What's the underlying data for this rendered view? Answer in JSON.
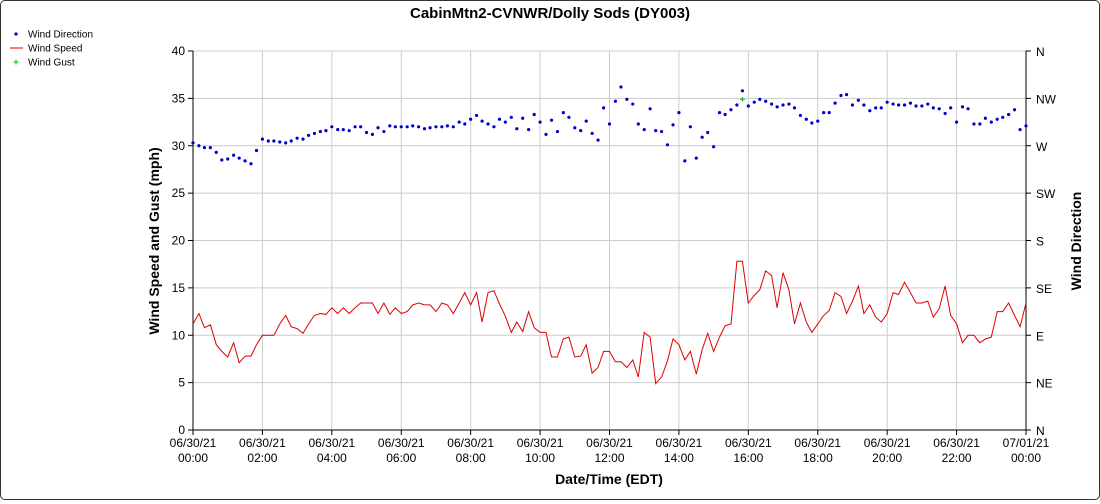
{
  "chart_data": {
    "type": "line",
    "title": "CabinMtn2-CVNWR/Dolly Sods (DY003)",
    "xlabel": "Date/Time (EDT)",
    "ylabel": "Wind Speed and Gust (mph)",
    "y2label": "Wind Direction",
    "ylim": [
      0,
      40
    ],
    "y_ticks": [
      "0",
      "5",
      "10",
      "15",
      "20",
      "25",
      "30",
      "35",
      "40"
    ],
    "y2_ticks": [
      "N",
      "NE",
      "E",
      "SE",
      "S",
      "SW",
      "W",
      "NW",
      "N"
    ],
    "x_range_hours": [
      0,
      24
    ],
    "x_ticks": [
      {
        "hour": 0,
        "date": "06/30/21",
        "time": "00:00"
      },
      {
        "hour": 2,
        "date": "06/30/21",
        "time": "02:00"
      },
      {
        "hour": 4,
        "date": "06/30/21",
        "time": "04:00"
      },
      {
        "hour": 6,
        "date": "06/30/21",
        "time": "06:00"
      },
      {
        "hour": 8,
        "date": "06/30/21",
        "time": "08:00"
      },
      {
        "hour": 10,
        "date": "06/30/21",
        "time": "10:00"
      },
      {
        "hour": 12,
        "date": "06/30/21",
        "time": "12:00"
      },
      {
        "hour": 14,
        "date": "06/30/21",
        "time": "14:00"
      },
      {
        "hour": 16,
        "date": "06/30/21",
        "time": "16:00"
      },
      {
        "hour": 18,
        "date": "06/30/21",
        "time": "18:00"
      },
      {
        "hour": 20,
        "date": "06/30/21",
        "time": "20:00"
      },
      {
        "hour": 22,
        "date": "06/30/21",
        "time": "22:00"
      },
      {
        "hour": 24,
        "date": "07/01/21",
        "time": "00:00"
      }
    ],
    "grid": true,
    "legend": [
      {
        "name": "Wind Direction",
        "color": "#0000cc",
        "marker": "dot"
      },
      {
        "name": "Wind Speed",
        "color": "#dd0000",
        "marker": "line"
      },
      {
        "name": "Wind Gust",
        "color": "#00bb00",
        "marker": "plus"
      }
    ],
    "series": [
      {
        "name": "Wind Speed",
        "color": "#dd0000",
        "values": [
          [
            0.0,
            11.2
          ],
          [
            0.17,
            12.3
          ],
          [
            0.33,
            10.8
          ],
          [
            0.5,
            11.1
          ],
          [
            0.67,
            9.0
          ],
          [
            0.83,
            8.3
          ],
          [
            1.0,
            7.7
          ],
          [
            1.17,
            9.2
          ],
          [
            1.33,
            7.1
          ],
          [
            1.5,
            7.8
          ],
          [
            1.67,
            7.8
          ],
          [
            1.83,
            9.0
          ],
          [
            2.0,
            10.0
          ],
          [
            2.17,
            10.0
          ],
          [
            2.33,
            10.0
          ],
          [
            2.5,
            11.2
          ],
          [
            2.67,
            12.1
          ],
          [
            2.83,
            10.9
          ],
          [
            3.0,
            10.7
          ],
          [
            3.17,
            10.2
          ],
          [
            3.33,
            11.2
          ],
          [
            3.5,
            12.1
          ],
          [
            3.67,
            12.3
          ],
          [
            3.83,
            12.2
          ],
          [
            4.0,
            12.9
          ],
          [
            4.17,
            12.3
          ],
          [
            4.33,
            12.9
          ],
          [
            4.5,
            12.3
          ],
          [
            4.67,
            12.9
          ],
          [
            4.83,
            13.4
          ],
          [
            5.0,
            13.4
          ],
          [
            5.17,
            13.4
          ],
          [
            5.33,
            12.3
          ],
          [
            5.5,
            13.4
          ],
          [
            5.67,
            12.2
          ],
          [
            5.83,
            12.9
          ],
          [
            6.0,
            12.3
          ],
          [
            6.17,
            12.5
          ],
          [
            6.33,
            13.2
          ],
          [
            6.5,
            13.4
          ],
          [
            6.67,
            13.2
          ],
          [
            6.83,
            13.2
          ],
          [
            7.0,
            12.5
          ],
          [
            7.17,
            13.4
          ],
          [
            7.33,
            13.2
          ],
          [
            7.5,
            12.3
          ],
          [
            7.67,
            13.4
          ],
          [
            7.83,
            14.5
          ],
          [
            8.0,
            13.2
          ],
          [
            8.17,
            14.5
          ],
          [
            8.33,
            11.4
          ],
          [
            8.5,
            14.5
          ],
          [
            8.67,
            14.7
          ],
          [
            8.83,
            13.3
          ],
          [
            9.0,
            12.0
          ],
          [
            9.17,
            10.3
          ],
          [
            9.33,
            11.4
          ],
          [
            9.5,
            10.4
          ],
          [
            9.67,
            12.5
          ],
          [
            9.83,
            10.8
          ],
          [
            10.0,
            10.3
          ],
          [
            10.17,
            10.3
          ],
          [
            10.33,
            7.7
          ],
          [
            10.5,
            7.7
          ],
          [
            10.67,
            9.6
          ],
          [
            10.83,
            9.8
          ],
          [
            11.0,
            7.7
          ],
          [
            11.17,
            7.8
          ],
          [
            11.33,
            9.0
          ],
          [
            11.5,
            6.0
          ],
          [
            11.67,
            6.6
          ],
          [
            11.83,
            8.3
          ],
          [
            12.0,
            8.3
          ],
          [
            12.17,
            7.2
          ],
          [
            12.33,
            7.2
          ],
          [
            12.5,
            6.6
          ],
          [
            12.67,
            7.4
          ],
          [
            12.83,
            5.6
          ],
          [
            13.0,
            10.3
          ],
          [
            13.17,
            9.8
          ],
          [
            13.33,
            4.9
          ],
          [
            13.5,
            5.6
          ],
          [
            13.67,
            7.3
          ],
          [
            13.83,
            9.6
          ],
          [
            14.0,
            9.0
          ],
          [
            14.17,
            7.4
          ],
          [
            14.33,
            8.3
          ],
          [
            14.5,
            5.9
          ],
          [
            14.67,
            8.5
          ],
          [
            14.83,
            10.2
          ],
          [
            15.0,
            8.3
          ],
          [
            15.17,
            9.8
          ],
          [
            15.33,
            11.0
          ],
          [
            15.5,
            11.2
          ],
          [
            15.67,
            17.8
          ],
          [
            15.83,
            17.8
          ],
          [
            16.0,
            13.4
          ],
          [
            16.17,
            14.2
          ],
          [
            16.33,
            14.8
          ],
          [
            16.5,
            16.8
          ],
          [
            16.67,
            16.3
          ],
          [
            16.83,
            12.9
          ],
          [
            17.0,
            16.6
          ],
          [
            17.17,
            14.8
          ],
          [
            17.33,
            11.2
          ],
          [
            17.5,
            13.4
          ],
          [
            17.67,
            11.4
          ],
          [
            17.83,
            10.3
          ],
          [
            18.0,
            11.2
          ],
          [
            18.17,
            12.1
          ],
          [
            18.33,
            12.6
          ],
          [
            18.5,
            14.5
          ],
          [
            18.67,
            14.1
          ],
          [
            18.83,
            12.3
          ],
          [
            19.0,
            13.6
          ],
          [
            19.17,
            15.2
          ],
          [
            19.33,
            12.3
          ],
          [
            19.5,
            13.2
          ],
          [
            19.67,
            11.9
          ],
          [
            19.83,
            11.4
          ],
          [
            20.0,
            12.3
          ],
          [
            20.17,
            14.5
          ],
          [
            20.33,
            14.3
          ],
          [
            20.5,
            15.6
          ],
          [
            20.67,
            14.5
          ],
          [
            20.83,
            13.4
          ],
          [
            21.0,
            13.4
          ],
          [
            21.17,
            13.6
          ],
          [
            21.33,
            11.9
          ],
          [
            21.5,
            12.8
          ],
          [
            21.67,
            15.2
          ],
          [
            21.83,
            12.1
          ],
          [
            22.0,
            11.2
          ],
          [
            22.17,
            9.2
          ],
          [
            22.33,
            10.0
          ],
          [
            22.5,
            10.0
          ],
          [
            22.67,
            9.2
          ],
          [
            22.83,
            9.6
          ],
          [
            23.0,
            9.8
          ],
          [
            23.17,
            12.5
          ],
          [
            23.33,
            12.5
          ],
          [
            23.5,
            13.4
          ],
          [
            23.67,
            12.1
          ],
          [
            23.83,
            10.9
          ],
          [
            24.0,
            13.4
          ]
        ]
      },
      {
        "name": "Wind Direction",
        "color": "#0000cc",
        "values": [
          [
            0.0,
            30.3
          ],
          [
            0.17,
            30.0
          ],
          [
            0.33,
            29.8
          ],
          [
            0.5,
            29.8
          ],
          [
            0.67,
            29.3
          ],
          [
            0.83,
            28.5
          ],
          [
            1.0,
            28.6
          ],
          [
            1.17,
            29.0
          ],
          [
            1.33,
            28.7
          ],
          [
            1.5,
            28.4
          ],
          [
            1.67,
            28.1
          ],
          [
            1.83,
            29.5
          ],
          [
            2.0,
            30.7
          ],
          [
            2.17,
            30.5
          ],
          [
            2.33,
            30.5
          ],
          [
            2.5,
            30.4
          ],
          [
            2.67,
            30.3
          ],
          [
            2.83,
            30.5
          ],
          [
            3.0,
            30.8
          ],
          [
            3.17,
            30.7
          ],
          [
            3.33,
            31.1
          ],
          [
            3.5,
            31.3
          ],
          [
            3.67,
            31.5
          ],
          [
            3.83,
            31.6
          ],
          [
            4.0,
            32.0
          ],
          [
            4.17,
            31.7
          ],
          [
            4.33,
            31.7
          ],
          [
            4.5,
            31.6
          ],
          [
            4.67,
            32.0
          ],
          [
            4.83,
            32.0
          ],
          [
            5.0,
            31.4
          ],
          [
            5.17,
            31.2
          ],
          [
            5.33,
            31.9
          ],
          [
            5.5,
            31.5
          ],
          [
            5.67,
            32.1
          ],
          [
            5.83,
            32.0
          ],
          [
            6.0,
            32.0
          ],
          [
            6.17,
            32.0
          ],
          [
            6.33,
            32.1
          ],
          [
            6.5,
            32.0
          ],
          [
            6.67,
            31.8
          ],
          [
            6.83,
            31.9
          ],
          [
            7.0,
            32.0
          ],
          [
            7.17,
            32.0
          ],
          [
            7.33,
            32.1
          ],
          [
            7.5,
            32.0
          ],
          [
            7.67,
            32.5
          ],
          [
            7.83,
            32.3
          ],
          [
            8.0,
            32.8
          ],
          [
            8.17,
            33.2
          ],
          [
            8.33,
            32.6
          ],
          [
            8.5,
            32.3
          ],
          [
            8.67,
            32.0
          ],
          [
            8.83,
            32.8
          ],
          [
            9.0,
            32.5
          ],
          [
            9.17,
            33.0
          ],
          [
            9.33,
            31.8
          ],
          [
            9.5,
            32.9
          ],
          [
            9.67,
            31.7
          ],
          [
            9.83,
            33.3
          ],
          [
            10.0,
            32.5
          ],
          [
            10.17,
            31.2
          ],
          [
            10.33,
            32.7
          ],
          [
            10.5,
            31.5
          ],
          [
            10.67,
            33.5
          ],
          [
            10.83,
            33.0
          ],
          [
            11.0,
            31.9
          ],
          [
            11.17,
            31.6
          ],
          [
            11.33,
            32.6
          ],
          [
            11.5,
            31.3
          ],
          [
            11.67,
            30.6
          ],
          [
            11.83,
            34.0
          ],
          [
            12.0,
            32.3
          ],
          [
            12.17,
            34.7
          ],
          [
            12.33,
            36.2
          ],
          [
            12.5,
            34.9
          ],
          [
            12.67,
            34.4
          ],
          [
            12.83,
            32.3
          ],
          [
            13.0,
            31.7
          ],
          [
            13.17,
            33.9
          ],
          [
            13.33,
            31.6
          ],
          [
            13.5,
            31.5
          ],
          [
            13.67,
            30.1
          ],
          [
            13.83,
            32.2
          ],
          [
            14.0,
            33.5
          ],
          [
            14.17,
            28.4
          ],
          [
            14.33,
            32.0
          ],
          [
            14.5,
            28.7
          ],
          [
            14.67,
            30.9
          ],
          [
            14.83,
            31.4
          ],
          [
            15.0,
            29.9
          ],
          [
            15.17,
            33.5
          ],
          [
            15.33,
            33.3
          ],
          [
            15.5,
            33.8
          ],
          [
            15.67,
            34.3
          ],
          [
            15.83,
            35.8
          ],
          [
            16.0,
            34.2
          ],
          [
            16.17,
            34.6
          ],
          [
            16.33,
            34.9
          ],
          [
            16.5,
            34.7
          ],
          [
            16.67,
            34.4
          ],
          [
            16.83,
            34.1
          ],
          [
            17.0,
            34.3
          ],
          [
            17.17,
            34.4
          ],
          [
            17.33,
            34.0
          ],
          [
            17.5,
            33.2
          ],
          [
            17.67,
            32.8
          ],
          [
            17.83,
            32.4
          ],
          [
            18.0,
            32.6
          ],
          [
            18.17,
            33.5
          ],
          [
            18.33,
            33.5
          ],
          [
            18.5,
            34.5
          ],
          [
            18.67,
            35.3
          ],
          [
            18.83,
            35.4
          ],
          [
            19.0,
            34.3
          ],
          [
            19.17,
            34.8
          ],
          [
            19.33,
            34.3
          ],
          [
            19.5,
            33.7
          ],
          [
            19.67,
            34.0
          ],
          [
            19.83,
            34.0
          ],
          [
            20.0,
            34.6
          ],
          [
            20.17,
            34.4
          ],
          [
            20.33,
            34.3
          ],
          [
            20.5,
            34.3
          ],
          [
            20.67,
            34.5
          ],
          [
            20.83,
            34.2
          ],
          [
            21.0,
            34.2
          ],
          [
            21.17,
            34.4
          ],
          [
            21.33,
            34.0
          ],
          [
            21.5,
            33.9
          ],
          [
            21.67,
            33.4
          ],
          [
            21.83,
            34.0
          ],
          [
            22.0,
            32.5
          ],
          [
            22.17,
            34.1
          ],
          [
            22.33,
            33.9
          ],
          [
            22.5,
            32.3
          ],
          [
            22.67,
            32.3
          ],
          [
            22.83,
            32.9
          ],
          [
            23.0,
            32.5
          ],
          [
            23.17,
            32.8
          ],
          [
            23.33,
            33.0
          ],
          [
            23.5,
            33.3
          ],
          [
            23.67,
            33.8
          ],
          [
            23.83,
            31.7
          ],
          [
            24.0,
            32.1
          ]
        ]
      },
      {
        "name": "Wind Gust",
        "color": "#00bb00",
        "values": [
          [
            15.83,
            34.9
          ]
        ]
      }
    ]
  }
}
